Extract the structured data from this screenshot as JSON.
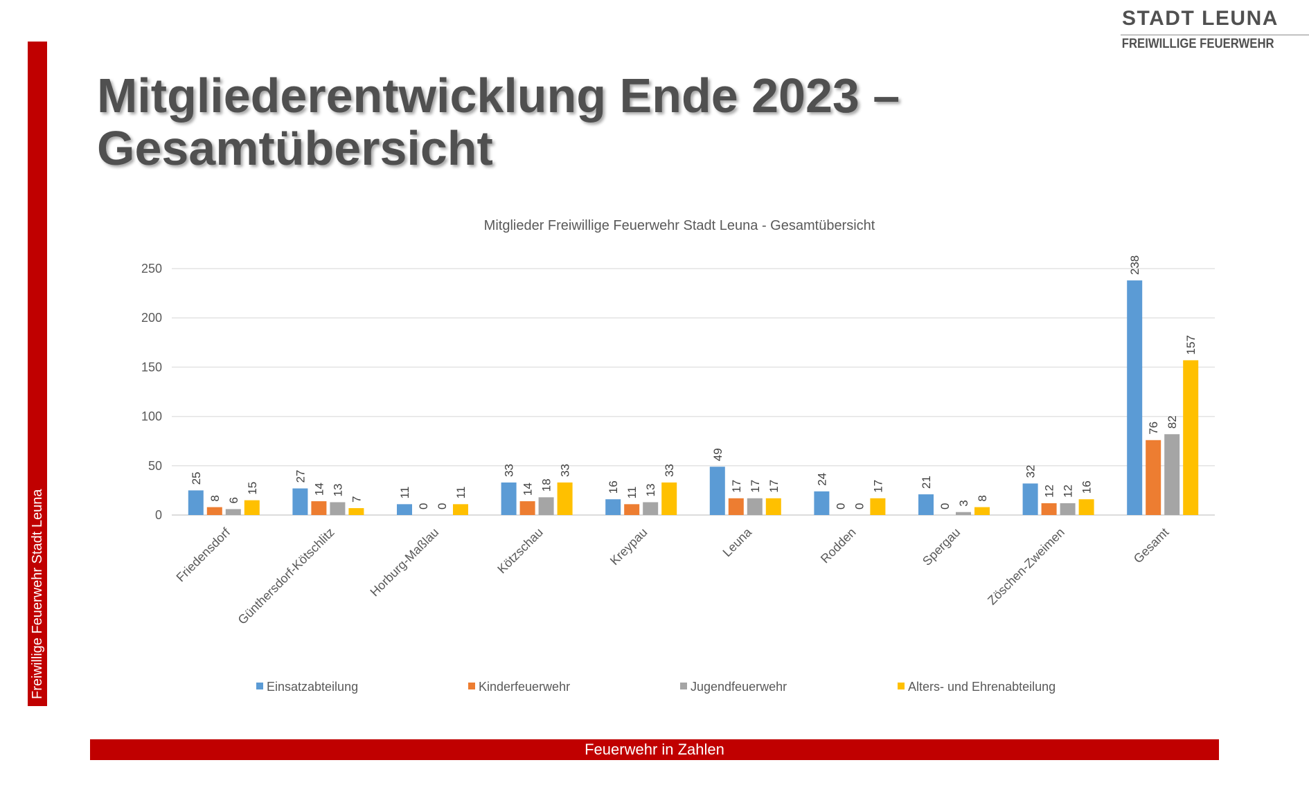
{
  "brand": {
    "title": "STADT LEUNA",
    "subtitle": "FREIWILLIGE FEUERWEHR"
  },
  "sidebar": {
    "text": "Freiwillige Feuerwehr Stadt Leuna",
    "color": "#c00000"
  },
  "page": {
    "title_line1": "Mitgliederentwicklung Ende 2023 –",
    "title_line2": "Gesamtübersicht"
  },
  "footer": {
    "text": "Feuerwehr in Zahlen",
    "color": "#c00000"
  },
  "chart_data": {
    "type": "bar",
    "title": "Mitglieder  Freiwillige  Feuerwehr  Stadt  Leuna  -  Gesamtübersicht",
    "xlabel": "",
    "ylabel": "",
    "ylim": [
      0,
      250
    ],
    "yticks": [
      0,
      50,
      100,
      150,
      200,
      250
    ],
    "grid": true,
    "legend": "bottom",
    "categories": [
      "Friedensdorf",
      "Günthersdorf-Kötschlitz",
      "Horburg-Maßlau",
      "Kötzschau",
      "Kreypau",
      "Leuna",
      "Rodden",
      "Spergau",
      "Zöschen-Zweimen",
      "Gesamt"
    ],
    "series": [
      {
        "name": "Einsatzabteilung",
        "color": "#5b9bd5",
        "values": [
          25,
          27,
          11,
          33,
          16,
          49,
          24,
          21,
          32,
          238
        ]
      },
      {
        "name": "Kinderfeuerwehr",
        "color": "#ed7d31",
        "values": [
          8,
          14,
          0,
          14,
          11,
          17,
          0,
          0,
          12,
          76
        ]
      },
      {
        "name": "Jugendfeuerwehr",
        "color": "#a5a5a5",
        "values": [
          6,
          13,
          0,
          18,
          13,
          17,
          0,
          3,
          12,
          82
        ]
      },
      {
        "name": "Alters- und Ehrenabteilung",
        "color": "#ffc000",
        "values": [
          15,
          7,
          11,
          33,
          33,
          17,
          17,
          8,
          16,
          157
        ]
      }
    ]
  }
}
